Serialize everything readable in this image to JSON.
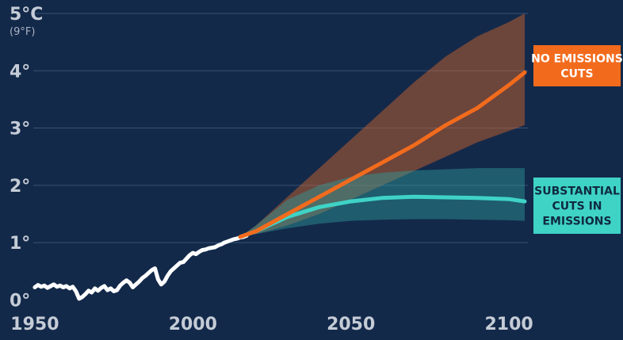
{
  "chart_data": {
    "type": "line",
    "title": "",
    "xlabel": "",
    "ylabel": "",
    "xlim": [
      1944,
      2106
    ],
    "ylim": [
      -0.05,
      5
    ],
    "x_ticks": [
      1950,
      2000,
      2050,
      2100
    ],
    "y_ticks": [
      {
        "value": 0,
        "label": "0°"
      },
      {
        "value": 1,
        "label": "1°"
      },
      {
        "value": 2,
        "label": "2°"
      },
      {
        "value": 3,
        "label": "3°"
      },
      {
        "value": 4,
        "label": "4°"
      },
      {
        "value": 5,
        "label": "5°C",
        "sublabel": "(9°F)"
      }
    ],
    "grid": true,
    "colors": {
      "background": "#13294a",
      "gridline": "#3a5273",
      "historical": "#ffffff",
      "no_cuts": "#f26b1d",
      "no_cuts_band": "#d9682a",
      "cuts": "#3fd3c6",
      "cuts_band": "#2f9c9b",
      "axis_text": "#c5ccd6"
    },
    "series": [
      {
        "id": "historical",
        "x": [
          1950,
          1951,
          1952,
          1953,
          1954,
          1955,
          1956,
          1957,
          1958,
          1959,
          1960,
          1961,
          1962,
          1963,
          1964,
          1965,
          1966,
          1967,
          1968,
          1969,
          1970,
          1971,
          1972,
          1973,
          1974,
          1975,
          1976,
          1977,
          1978,
          1979,
          1980,
          1981,
          1982,
          1983,
          1984,
          1985,
          1986,
          1987,
          1988,
          1989,
          1990,
          1991,
          1992,
          1993,
          1994,
          1995,
          1996,
          1997,
          1998,
          1999,
          2000,
          2001,
          2002,
          2003,
          2004,
          2005,
          2006,
          2007,
          2008,
          2009,
          2010,
          2011,
          2012,
          2013,
          2014,
          2015,
          2016,
          2017
        ],
        "values": [
          0.22,
          0.26,
          0.23,
          0.25,
          0.21,
          0.24,
          0.27,
          0.23,
          0.25,
          0.22,
          0.24,
          0.2,
          0.23,
          0.15,
          0.02,
          0.05,
          0.1,
          0.16,
          0.13,
          0.2,
          0.16,
          0.21,
          0.24,
          0.17,
          0.2,
          0.15,
          0.17,
          0.25,
          0.3,
          0.34,
          0.3,
          0.22,
          0.27,
          0.32,
          0.38,
          0.42,
          0.47,
          0.52,
          0.55,
          0.36,
          0.27,
          0.32,
          0.42,
          0.5,
          0.55,
          0.6,
          0.65,
          0.66,
          0.72,
          0.78,
          0.82,
          0.8,
          0.84,
          0.87,
          0.88,
          0.9,
          0.91,
          0.92,
          0.95,
          0.97,
          1.0,
          1.02,
          1.04,
          1.06,
          1.07,
          1.09,
          1.1,
          1.12
        ]
      },
      {
        "id": "no-cuts",
        "name": "NO EMISSIONS CUTS",
        "x": [
          2015,
          2020,
          2030,
          2040,
          2050,
          2060,
          2070,
          2080,
          2090,
          2100,
          2105
        ],
        "values": [
          1.1,
          1.2,
          1.5,
          1.8,
          2.1,
          2.4,
          2.7,
          3.05,
          3.35,
          3.75,
          3.97
        ],
        "band_low": [
          1.1,
          1.15,
          1.3,
          1.5,
          1.75,
          2.0,
          2.25,
          2.5,
          2.75,
          2.95,
          3.05
        ],
        "band_high": [
          1.1,
          1.3,
          1.8,
          2.3,
          2.8,
          3.3,
          3.8,
          4.25,
          4.6,
          4.85,
          5.0
        ]
      },
      {
        "id": "cuts",
        "name": "SUBSTANTIAL CUTS IN EMISSIONS",
        "x": [
          2015,
          2020,
          2030,
          2040,
          2050,
          2060,
          2070,
          2080,
          2090,
          2100,
          2105
        ],
        "values": [
          1.1,
          1.2,
          1.45,
          1.62,
          1.72,
          1.78,
          1.8,
          1.79,
          1.78,
          1.76,
          1.72
        ],
        "band_low": [
          1.1,
          1.15,
          1.25,
          1.33,
          1.38,
          1.4,
          1.41,
          1.41,
          1.4,
          1.39,
          1.38
        ],
        "band_high": [
          1.1,
          1.3,
          1.75,
          2.0,
          2.15,
          2.22,
          2.26,
          2.28,
          2.3,
          2.3,
          2.3
        ]
      }
    ],
    "annotations": [
      {
        "id": "no-cuts-label",
        "lines": [
          "NO EMISSIONS",
          "CUTS"
        ],
        "color": "#f26b1d",
        "text_color": "#ffffff"
      },
      {
        "id": "cuts-label",
        "lines": [
          "SUBSTANTIAL",
          "CUTS IN",
          "EMISSIONS"
        ],
        "color": "#3fd3c6",
        "text_color": "#0f2a40"
      }
    ]
  }
}
